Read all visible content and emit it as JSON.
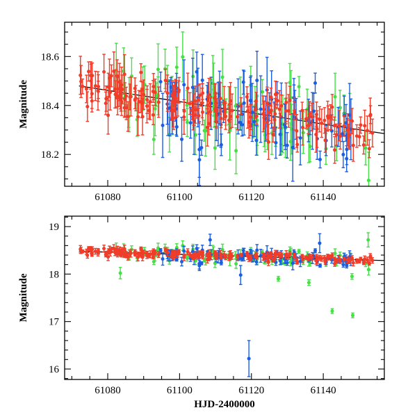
{
  "chart_data": [
    {
      "type": "scatter",
      "panel": "top",
      "xlabel": "",
      "ylabel": "Magnitude",
      "xlim": [
        61068,
        61157
      ],
      "ylim": [
        18.74,
        18.07
      ],
      "y_inverted": true,
      "xticks": [
        61080,
        61100,
        61120,
        61140
      ],
      "yticks": [
        18.2,
        18.4,
        18.6
      ],
      "trend_line": {
        "x": [
          61072,
          61157
        ],
        "y": [
          18.48,
          18.285
        ],
        "color": "#000000"
      },
      "series": [
        {
          "name": "red",
          "color": "#f03c28",
          "seed": 11,
          "n": 190,
          "scatter": 0.045,
          "err": [
            0.03,
            0.08
          ],
          "x_range": [
            61072,
            61154
          ]
        },
        {
          "name": "green",
          "color": "#44e044",
          "seed": 29,
          "n": 70,
          "scatter": 0.09,
          "err": [
            0.04,
            0.12
          ],
          "x_range": [
            61082,
            61154
          ]
        },
        {
          "name": "blue",
          "color": "#1a5fe0",
          "seed": 47,
          "n": 85,
          "scatter": 0.09,
          "err": [
            0.03,
            0.14
          ],
          "x_range": [
            61094,
            61148
          ]
        }
      ]
    },
    {
      "type": "scatter",
      "panel": "bottom",
      "xlabel": "HJD-2400000",
      "ylabel": "Magnitude",
      "xlim": [
        61068,
        61157
      ],
      "ylim": [
        19.22,
        15.78
      ],
      "y_inverted": true,
      "xticks": [
        61080,
        61100,
        61120,
        61140
      ],
      "yticks": [
        16,
        17,
        18,
        19
      ],
      "trend_line": {
        "x": [
          61072,
          61157
        ],
        "y": [
          18.48,
          18.285
        ],
        "color": "#000000"
      },
      "series": [
        {
          "name": "red",
          "color": "#f03c28",
          "seed": 11,
          "n": 190,
          "scatter": 0.045,
          "err": [
            0.03,
            0.08
          ],
          "x_range": [
            61072,
            61154
          ]
        },
        {
          "name": "green",
          "color": "#44e044",
          "seed": 29,
          "n": 70,
          "scatter": 0.09,
          "err": [
            0.04,
            0.12
          ],
          "x_range": [
            61082,
            61154
          ]
        },
        {
          "name": "blue",
          "color": "#1a5fe0",
          "seed": 47,
          "n": 85,
          "scatter": 0.09,
          "err": [
            0.03,
            0.14
          ],
          "x_range": [
            61094,
            61148
          ]
        }
      ],
      "outliers": [
        {
          "series": "blue",
          "x": 61119.3,
          "y": 16.22,
          "err": 0.38
        },
        {
          "series": "green",
          "x": 61142.5,
          "y": 17.22,
          "err": 0.05
        },
        {
          "series": "green",
          "x": 61148.2,
          "y": 17.13,
          "err": 0.05
        },
        {
          "series": "green",
          "x": 61083.5,
          "y": 18.02,
          "err": 0.12
        },
        {
          "series": "green",
          "x": 61136.0,
          "y": 17.82,
          "err": 0.06
        },
        {
          "series": "green",
          "x": 61127.5,
          "y": 17.9,
          "err": 0.05
        },
        {
          "series": "green",
          "x": 61148.0,
          "y": 17.95,
          "err": 0.06
        },
        {
          "series": "blue",
          "x": 61117.0,
          "y": 17.98,
          "err": 0.2
        },
        {
          "series": "blue",
          "x": 61139.0,
          "y": 18.65,
          "err": 0.2
        },
        {
          "series": "green",
          "x": 61152.5,
          "y": 18.72,
          "err": 0.15
        },
        {
          "series": "blue",
          "x": 61108.5,
          "y": 18.72,
          "err": 0.12
        }
      ]
    }
  ]
}
